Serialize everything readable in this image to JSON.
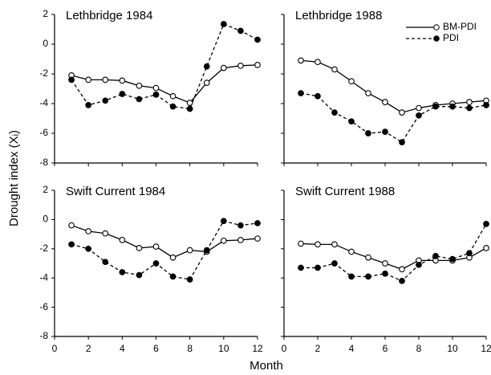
{
  "ylabel": "Drought index (Xᵢ)",
  "xlabel": "Month",
  "chart_data": [
    {
      "type": "line",
      "title": "Lethbridge 1984",
      "x": [
        1,
        2,
        3,
        4,
        5,
        6,
        7,
        8,
        9,
        10,
        11,
        12
      ],
      "series": [
        {
          "name": "BM-PDI",
          "color": "#000000",
          "linestyle": "solid",
          "marker": "open",
          "values": [
            -2.1,
            -2.4,
            -2.4,
            -2.45,
            -2.8,
            -2.95,
            -3.5,
            -3.95,
            -2.6,
            -1.6,
            -1.45,
            -1.4
          ]
        },
        {
          "name": "PDI",
          "color": "#000000",
          "linestyle": "dashed",
          "marker": "filled",
          "values": [
            -2.4,
            -4.1,
            -3.8,
            -3.35,
            -3.7,
            -3.4,
            -4.2,
            -4.35,
            -1.5,
            1.35,
            0.9,
            0.3
          ]
        }
      ],
      "xlim": [
        0,
        12
      ],
      "xticks": [
        0,
        2,
        4,
        6,
        8,
        10,
        12
      ],
      "ylim": [
        -8,
        2
      ],
      "yticks": [
        2,
        0,
        -2,
        -4,
        -6,
        -8
      ]
    },
    {
      "type": "line",
      "title": "Lethbridge 1988",
      "x": [
        1,
        2,
        3,
        4,
        5,
        6,
        7,
        8,
        9,
        10,
        11,
        12
      ],
      "series": [
        {
          "name": "BM-PDI",
          "color": "#000000",
          "linestyle": "solid",
          "marker": "open",
          "values": [
            -1.1,
            -1.2,
            -1.7,
            -2.5,
            -3.3,
            -3.9,
            -4.6,
            -4.3,
            -4.1,
            -4.0,
            -3.9,
            -3.8
          ]
        },
        {
          "name": "PDI",
          "color": "#000000",
          "linestyle": "dashed",
          "marker": "filled",
          "values": [
            -3.3,
            -3.5,
            -4.6,
            -5.2,
            -6.0,
            -5.9,
            -6.6,
            -4.8,
            -4.2,
            -4.2,
            -4.3,
            -4.1
          ]
        }
      ],
      "xlim": [
        0,
        12
      ],
      "xticks": [
        0,
        2,
        4,
        6,
        8,
        10,
        12
      ],
      "ylim": [
        -8,
        2
      ],
      "yticks": [
        2,
        0,
        -2,
        -4,
        -6,
        -8
      ],
      "legend": "upper right"
    },
    {
      "type": "line",
      "title": "Swift Current 1984",
      "x": [
        1,
        2,
        3,
        4,
        5,
        6,
        7,
        8,
        9,
        10,
        11,
        12
      ],
      "series": [
        {
          "name": "BM-PDI",
          "color": "#000000",
          "linestyle": "solid",
          "marker": "open",
          "values": [
            -0.4,
            -0.8,
            -0.95,
            -1.4,
            -1.95,
            -1.85,
            -2.6,
            -2.1,
            -2.2,
            -1.45,
            -1.4,
            -1.3
          ]
        },
        {
          "name": "PDI",
          "color": "#000000",
          "linestyle": "dashed",
          "marker": "filled",
          "values": [
            -1.7,
            -2.0,
            -2.9,
            -3.6,
            -3.8,
            -3.0,
            -3.9,
            -4.1,
            -2.1,
            -0.1,
            -0.4,
            -0.25
          ]
        }
      ],
      "xlim": [
        0,
        12
      ],
      "xticks": [
        0,
        2,
        4,
        6,
        8,
        10,
        12
      ],
      "ylim": [
        -8,
        2
      ],
      "yticks": [
        2,
        0,
        -2,
        -4,
        -6,
        -8
      ]
    },
    {
      "type": "line",
      "title": "Swift Current 1988",
      "x": [
        1,
        2,
        3,
        4,
        5,
        6,
        7,
        8,
        9,
        10,
        11,
        12
      ],
      "series": [
        {
          "name": "BM-PDI",
          "color": "#000000",
          "linestyle": "solid",
          "marker": "open",
          "values": [
            -1.65,
            -1.7,
            -1.7,
            -2.2,
            -2.6,
            -3.0,
            -3.4,
            -2.8,
            -2.8,
            -2.8,
            -2.6,
            -1.95
          ]
        },
        {
          "name": "PDI",
          "color": "#000000",
          "linestyle": "dashed",
          "marker": "filled",
          "values": [
            -3.3,
            -3.3,
            -3.0,
            -3.9,
            -3.9,
            -3.7,
            -4.2,
            -3.1,
            -2.5,
            -2.7,
            -2.3,
            -0.3
          ]
        }
      ],
      "xlim": [
        0,
        12
      ],
      "xticks": [
        0,
        2,
        4,
        6,
        8,
        10,
        12
      ],
      "ylim": [
        -8,
        2
      ],
      "yticks": [
        2,
        0,
        -2,
        -4,
        -6,
        -8
      ]
    }
  ]
}
